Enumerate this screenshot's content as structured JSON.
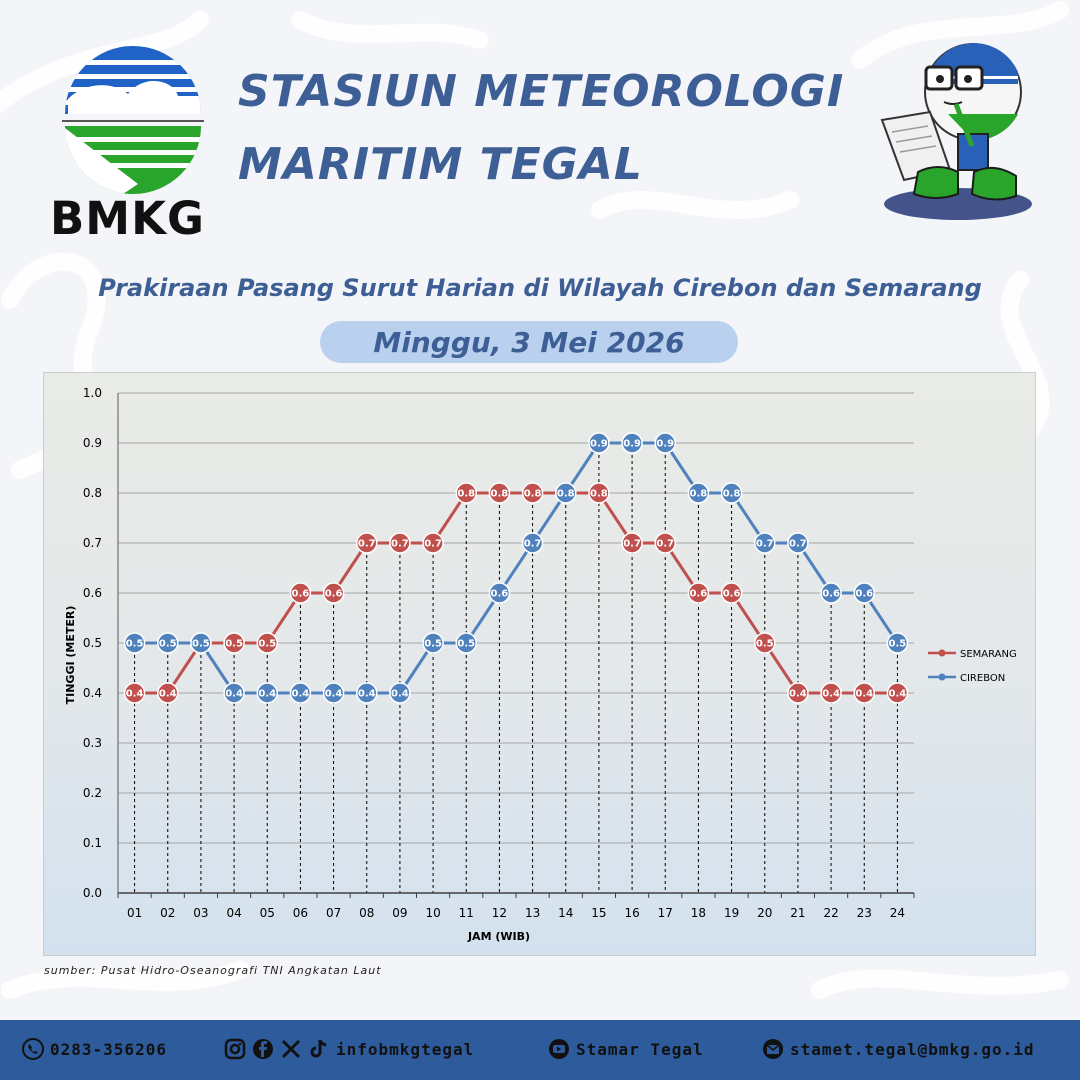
{
  "header": {
    "logo_text": "BMKG",
    "title_line1": "STASIUN METEOROLOGI",
    "title_line2": "MARITIM TEGAL",
    "subtitle": "Prakiraan Pasang Surut Harian di Wilayah Cirebon dan Semarang",
    "date": "Minggu, 3 Mei 2026"
  },
  "colors": {
    "semarang": "#c0504d",
    "cirebon": "#4f81bd",
    "title": "#3d5f95",
    "footer": "#2d5b9c"
  },
  "chart_data": {
    "type": "line",
    "xlabel": "JAM (WIB)",
    "ylabel": "TINGGI (METER)",
    "ylim": [
      0,
      1.0
    ],
    "yticks": [
      "0.0",
      "0.1",
      "0.2",
      "0.3",
      "0.4",
      "0.5",
      "0.6",
      "0.7",
      "0.8",
      "0.9",
      "1.0"
    ],
    "categories": [
      "01",
      "02",
      "03",
      "04",
      "05",
      "06",
      "07",
      "08",
      "09",
      "10",
      "11",
      "12",
      "13",
      "14",
      "15",
      "16",
      "17",
      "18",
      "19",
      "20",
      "21",
      "22",
      "23",
      "24"
    ],
    "grid": "horizontal",
    "legend_position": "right",
    "series": [
      {
        "name": "SEMARANG",
        "color": "#c0504d",
        "values": [
          0.4,
          0.4,
          0.5,
          0.5,
          0.5,
          0.6,
          0.6,
          0.7,
          0.7,
          0.7,
          0.8,
          0.8,
          0.8,
          0.8,
          0.8,
          0.7,
          0.7,
          0.6,
          0.6,
          0.5,
          0.4,
          0.4,
          0.4,
          0.4
        ]
      },
      {
        "name": "CIREBON",
        "color": "#4f81bd",
        "values": [
          0.5,
          0.5,
          0.5,
          0.4,
          0.4,
          0.4,
          0.4,
          0.4,
          0.4,
          0.5,
          0.5,
          0.6,
          0.7,
          0.8,
          0.9,
          0.9,
          0.9,
          0.8,
          0.8,
          0.7,
          0.7,
          0.6,
          0.6,
          0.5
        ]
      }
    ]
  },
  "source": "sumber: Pusat Hidro-Oseanografi TNI Angkatan Laut",
  "footer": {
    "phone": "0283-356206",
    "social": "infobmkgtegal",
    "youtube": "Stamar Tegal",
    "email": "stamet.tegal@bmkg.go.id"
  }
}
